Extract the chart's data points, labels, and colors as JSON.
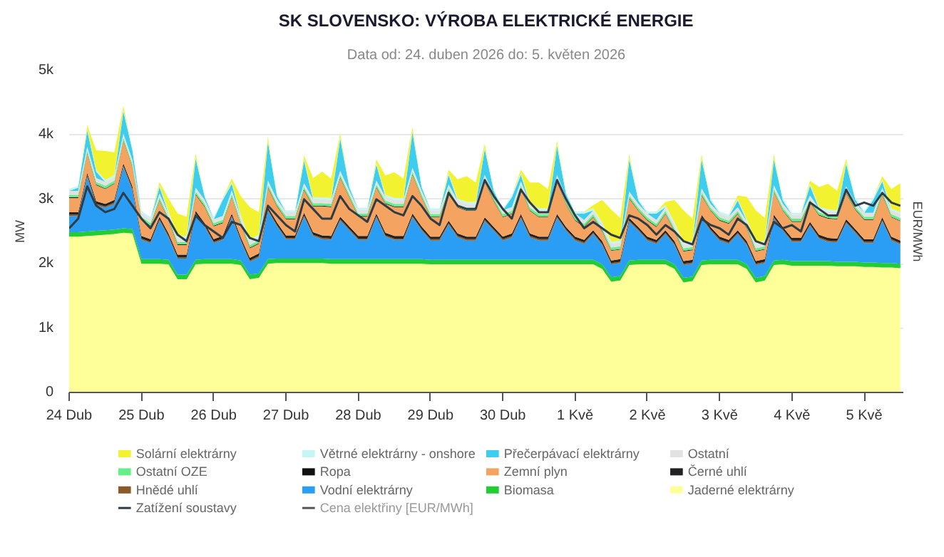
{
  "chart_data": {
    "type": "area",
    "stacked": true,
    "title": "SK SLOVENSKO: VÝROBA ELEKTRICKÉ ENERGIE",
    "subtitle": "Data od: 24. duben 2026 do: 5. květen 2026",
    "ylabel": "MW",
    "y2label": "EUR/MWh",
    "x": [
      "2026-04-24T00:00",
      "2026-04-24T03:00",
      "2026-04-24T06:00",
      "2026-04-24T09:00",
      "2026-04-24T12:00",
      "2026-04-24T15:00",
      "2026-04-24T18:00",
      "2026-04-24T21:00",
      "2026-04-25T00:00",
      "2026-04-25T03:00",
      "2026-04-25T06:00",
      "2026-04-25T09:00",
      "2026-04-25T12:00",
      "2026-04-25T15:00",
      "2026-04-25T18:00",
      "2026-04-25T21:00",
      "2026-04-26T00:00",
      "2026-04-26T03:00",
      "2026-04-26T06:00",
      "2026-04-26T09:00",
      "2026-04-26T12:00",
      "2026-04-26T15:00",
      "2026-04-26T18:00",
      "2026-04-26T21:00",
      "2026-04-27T00:00",
      "2026-04-27T03:00",
      "2026-04-27T06:00",
      "2026-04-27T09:00",
      "2026-04-27T12:00",
      "2026-04-27T15:00",
      "2026-04-27T18:00",
      "2026-04-27T21:00",
      "2026-04-28T00:00",
      "2026-04-28T03:00",
      "2026-04-28T06:00",
      "2026-04-28T09:00",
      "2026-04-28T12:00",
      "2026-04-28T15:00",
      "2026-04-28T18:00",
      "2026-04-28T21:00",
      "2026-04-29T00:00",
      "2026-04-29T03:00",
      "2026-04-29T06:00",
      "2026-04-29T09:00",
      "2026-04-29T12:00",
      "2026-04-29T15:00",
      "2026-04-29T18:00",
      "2026-04-29T21:00",
      "2026-04-30T00:00",
      "2026-04-30T03:00",
      "2026-04-30T06:00",
      "2026-04-30T09:00",
      "2026-04-30T12:00",
      "2026-04-30T15:00",
      "2026-04-30T18:00",
      "2026-04-30T21:00",
      "2026-05-01T00:00",
      "2026-05-01T03:00",
      "2026-05-01T06:00",
      "2026-05-01T09:00",
      "2026-05-01T12:00",
      "2026-05-01T15:00",
      "2026-05-01T18:00",
      "2026-05-01T21:00",
      "2026-05-02T00:00",
      "2026-05-02T03:00",
      "2026-05-02T06:00",
      "2026-05-02T09:00",
      "2026-05-02T12:00",
      "2026-05-02T15:00",
      "2026-05-02T18:00",
      "2026-05-02T21:00",
      "2026-05-03T00:00",
      "2026-05-03T03:00",
      "2026-05-03T06:00",
      "2026-05-03T09:00",
      "2026-05-03T12:00",
      "2026-05-03T15:00",
      "2026-05-03T18:00",
      "2026-05-03T21:00",
      "2026-05-04T00:00",
      "2026-05-04T03:00",
      "2026-05-04T06:00",
      "2026-05-04T09:00",
      "2026-05-04T12:00",
      "2026-05-04T15:00",
      "2026-05-04T18:00",
      "2026-05-04T21:00",
      "2026-05-05T00:00",
      "2026-05-05T03:00",
      "2026-05-05T06:00",
      "2026-05-05T09:00",
      "2026-05-05T12:00"
    ],
    "xlim": [
      "2026-04-24T00:00",
      "2026-05-05T13:00"
    ],
    "xticks": [
      {
        "value": "2026-04-24",
        "label": "24 Dub"
      },
      {
        "value": "2026-04-25",
        "label": "25 Dub"
      },
      {
        "value": "2026-04-26",
        "label": "26 Dub"
      },
      {
        "value": "2026-04-27",
        "label": "27 Dub"
      },
      {
        "value": "2026-04-28",
        "label": "28 Dub"
      },
      {
        "value": "2026-04-29",
        "label": "29 Dub"
      },
      {
        "value": "2026-04-30",
        "label": "30 Dub"
      },
      {
        "value": "2026-05-01",
        "label": "1 Kvě"
      },
      {
        "value": "2026-05-02",
        "label": "2 Kvě"
      },
      {
        "value": "2026-05-03",
        "label": "3 Kvě"
      },
      {
        "value": "2026-05-04",
        "label": "4 Kvě"
      },
      {
        "value": "2026-05-05",
        "label": "5 Kvě"
      }
    ],
    "ylim": [
      0,
      5000
    ],
    "yticks": [
      0,
      {
        "value": 1000,
        "label": "1k"
      },
      {
        "value": 2000,
        "label": "2k"
      },
      {
        "value": 3000,
        "label": "3k"
      },
      {
        "value": 4000,
        "label": "4k"
      },
      {
        "value": 5000,
        "label": "5k"
      }
    ],
    "grid": "y",
    "legend": "bottom",
    "series": [
      {
        "name": "Jaderné elektrárny",
        "color": "#ffff99",
        "values": [
          2420,
          2420,
          2430,
          2440,
          2450,
          2460,
          2480,
          2470,
          2000,
          2000,
          2000,
          1990,
          1760,
          1760,
          1990,
          2000,
          2000,
          2000,
          2000,
          1980,
          1760,
          1780,
          2000,
          2010,
          2010,
          2010,
          2010,
          2010,
          2010,
          2000,
          2000,
          2000,
          2000,
          2000,
          2000,
          2000,
          2000,
          2000,
          2000,
          2000,
          1990,
          1990,
          1990,
          1990,
          1990,
          1990,
          1990,
          1990,
          1990,
          1990,
          1990,
          1990,
          1990,
          1990,
          1990,
          1990,
          1990,
          1990,
          1990,
          1920,
          1720,
          1740,
          1980,
          1990,
          1990,
          1990,
          1990,
          1920,
          1710,
          1730,
          1980,
          1990,
          1990,
          1990,
          1990,
          1920,
          1710,
          1740,
          1980,
          1990,
          1970,
          1970,
          1970,
          1970,
          1970,
          1960,
          1960,
          1960,
          1950,
          1950,
          1940,
          1940,
          1930
        ]
      },
      {
        "name": "Biomasa",
        "color": "#22cc33",
        "values": [
          70,
          70,
          70,
          70,
          70,
          70,
          70,
          70,
          70,
          70,
          70,
          70,
          70,
          70,
          70,
          70,
          70,
          70,
          70,
          70,
          70,
          70,
          70,
          70,
          70,
          70,
          70,
          70,
          70,
          70,
          70,
          70,
          70,
          70,
          70,
          70,
          70,
          70,
          70,
          70,
          70,
          70,
          70,
          70,
          70,
          70,
          70,
          70,
          70,
          70,
          70,
          70,
          70,
          70,
          70,
          70,
          70,
          70,
          70,
          70,
          70,
          70,
          70,
          70,
          70,
          70,
          70,
          70,
          70,
          70,
          70,
          70,
          70,
          70,
          70,
          70,
          70,
          70,
          70,
          70,
          70,
          70,
          70,
          70,
          70,
          70,
          70,
          70,
          70,
          70,
          70,
          70,
          70
        ]
      },
      {
        "name": "Vodní elektrárny",
        "color": "#2a9df4",
        "values": [
          250,
          250,
          850,
          400,
          350,
          400,
          950,
          600,
          300,
          250,
          600,
          350,
          250,
          250,
          700,
          500,
          250,
          300,
          650,
          300,
          200,
          250,
          750,
          500,
          300,
          300,
          650,
          350,
          300,
          300,
          600,
          450,
          300,
          300,
          650,
          350,
          300,
          300,
          650,
          450,
          300,
          300,
          550,
          350,
          300,
          300,
          600,
          450,
          300,
          350,
          650,
          350,
          300,
          300,
          650,
          450,
          300,
          250,
          400,
          300,
          200,
          200,
          600,
          450,
          300,
          250,
          400,
          300,
          200,
          200,
          650,
          450,
          300,
          250,
          400,
          300,
          200,
          200,
          650,
          450,
          300,
          300,
          550,
          350,
          300,
          300,
          600,
          450,
          300,
          300,
          650,
          350,
          300
        ]
      },
      {
        "name": "Hnědé uhlí",
        "color": "#8b5a2b",
        "values": [
          20,
          20,
          20,
          20,
          20,
          20,
          20,
          20,
          20,
          20,
          20,
          20,
          20,
          20,
          20,
          20,
          20,
          20,
          20,
          20,
          20,
          20,
          20,
          20,
          20,
          20,
          20,
          20,
          20,
          20,
          20,
          20,
          20,
          20,
          20,
          20,
          20,
          20,
          20,
          20,
          20,
          20,
          20,
          20,
          20,
          20,
          20,
          20,
          20,
          20,
          20,
          20,
          20,
          20,
          20,
          20,
          20,
          20,
          20,
          20,
          20,
          20,
          20,
          20,
          20,
          20,
          20,
          20,
          20,
          20,
          20,
          20,
          20,
          20,
          20,
          20,
          20,
          20,
          20,
          20,
          20,
          20,
          20,
          20,
          20,
          20,
          20,
          20,
          20,
          20,
          20,
          20,
          20
        ]
      },
      {
        "name": "Černé uhlí",
        "color": "#222222",
        "values": [
          40,
          40,
          40,
          40,
          40,
          40,
          40,
          40,
          40,
          40,
          40,
          40,
          40,
          40,
          40,
          40,
          40,
          40,
          40,
          40,
          40,
          40,
          40,
          40,
          40,
          40,
          40,
          40,
          40,
          40,
          40,
          40,
          40,
          40,
          40,
          40,
          40,
          40,
          40,
          40,
          40,
          40,
          40,
          40,
          40,
          40,
          40,
          40,
          40,
          40,
          40,
          40,
          40,
          40,
          40,
          40,
          40,
          40,
          40,
          40,
          40,
          40,
          40,
          40,
          40,
          40,
          40,
          40,
          40,
          40,
          40,
          40,
          40,
          40,
          40,
          40,
          40,
          40,
          40,
          40,
          40,
          40,
          40,
          40,
          40,
          40,
          40,
          40,
          40,
          40,
          40,
          40,
          40
        ]
      },
      {
        "name": "Zemní plyn",
        "color": "#f4a460",
        "values": [
          220,
          220,
          300,
          250,
          230,
          250,
          350,
          300,
          250,
          200,
          250,
          200,
          150,
          150,
          250,
          250,
          200,
          200,
          250,
          200,
          150,
          150,
          300,
          250,
          250,
          250,
          350,
          400,
          450,
          450,
          600,
          450,
          300,
          300,
          400,
          450,
          450,
          450,
          600,
          450,
          300,
          300,
          450,
          400,
          400,
          400,
          550,
          400,
          300,
          300,
          400,
          350,
          300,
          300,
          500,
          350,
          250,
          200,
          200,
          150,
          150,
          150,
          300,
          250,
          250,
          200,
          250,
          150,
          150,
          150,
          300,
          250,
          250,
          250,
          250,
          200,
          150,
          150,
          350,
          250,
          250,
          250,
          300,
          300,
          300,
          300,
          400,
          300,
          300,
          300,
          350,
          300,
          300
        ]
      },
      {
        "name": "Ropa",
        "color": "#111111",
        "values": [
          10,
          10,
          10,
          10,
          10,
          10,
          10,
          10,
          10,
          10,
          10,
          10,
          10,
          10,
          10,
          10,
          10,
          10,
          10,
          10,
          10,
          10,
          10,
          10,
          10,
          10,
          10,
          10,
          10,
          10,
          10,
          10,
          10,
          10,
          10,
          10,
          10,
          10,
          10,
          10,
          10,
          10,
          10,
          10,
          10,
          10,
          10,
          10,
          10,
          10,
          10,
          10,
          10,
          10,
          10,
          10,
          10,
          10,
          10,
          10,
          10,
          10,
          10,
          10,
          10,
          10,
          10,
          10,
          10,
          10,
          10,
          10,
          10,
          10,
          10,
          10,
          10,
          10,
          10,
          10,
          10,
          10,
          10,
          10,
          10,
          10,
          10,
          10,
          10,
          10,
          10,
          10,
          10
        ]
      },
      {
        "name": "Ostatní OZE",
        "color": "#66ee88",
        "values": [
          40,
          40,
          40,
          40,
          40,
          40,
          40,
          40,
          40,
          40,
          40,
          40,
          40,
          40,
          40,
          40,
          40,
          40,
          40,
          40,
          40,
          40,
          40,
          40,
          40,
          40,
          40,
          40,
          40,
          40,
          40,
          40,
          40,
          40,
          40,
          40,
          40,
          40,
          40,
          40,
          40,
          40,
          40,
          40,
          40,
          40,
          40,
          40,
          40,
          40,
          40,
          40,
          40,
          40,
          40,
          40,
          40,
          40,
          40,
          40,
          40,
          40,
          40,
          40,
          40,
          40,
          40,
          40,
          40,
          40,
          40,
          40,
          40,
          40,
          40,
          40,
          40,
          40,
          40,
          40,
          40,
          40,
          40,
          40,
          40,
          40,
          40,
          40,
          40,
          40,
          40,
          40,
          40
        ]
      },
      {
        "name": "Ostatní",
        "color": "#e2e2e2",
        "values": [
          60,
          60,
          60,
          60,
          60,
          60,
          60,
          60,
          60,
          60,
          60,
          60,
          60,
          60,
          60,
          60,
          60,
          60,
          60,
          60,
          60,
          60,
          60,
          60,
          60,
          60,
          60,
          60,
          60,
          60,
          60,
          60,
          60,
          60,
          60,
          60,
          60,
          60,
          60,
          60,
          60,
          60,
          60,
          60,
          60,
          60,
          60,
          60,
          60,
          60,
          60,
          60,
          60,
          60,
          60,
          60,
          60,
          60,
          60,
          60,
          60,
          60,
          60,
          60,
          60,
          60,
          60,
          60,
          60,
          60,
          60,
          60,
          60,
          60,
          60,
          60,
          60,
          60,
          60,
          60,
          60,
          60,
          60,
          60,
          60,
          60,
          60,
          60,
          60,
          60,
          60,
          60,
          60
        ]
      },
      {
        "name": "Přečerpávací elektrárny",
        "color": "#3fcdef",
        "values": [
          0,
          50,
          250,
          100,
          0,
          0,
          350,
          150,
          0,
          0,
          100,
          0,
          0,
          0,
          450,
          50,
          0,
          250,
          100,
          0,
          0,
          0,
          600,
          50,
          0,
          0,
          350,
          0,
          0,
          0,
          500,
          50,
          0,
          0,
          250,
          0,
          0,
          0,
          550,
          50,
          0,
          0,
          150,
          0,
          0,
          0,
          400,
          50,
          0,
          150,
          100,
          0,
          0,
          0,
          450,
          50,
          0,
          100,
          0,
          0,
          0,
          0,
          500,
          50,
          0,
          100,
          0,
          0,
          0,
          0,
          450,
          50,
          0,
          0,
          100,
          0,
          0,
          0,
          400,
          50,
          0,
          0,
          150,
          0,
          0,
          0,
          350,
          50,
          0,
          200,
          100,
          0,
          0
        ]
      },
      {
        "name": "Větrné elektrárny - onshore",
        "color": "#c4f7f3",
        "values": [
          30,
          30,
          30,
          30,
          30,
          30,
          30,
          30,
          30,
          30,
          30,
          30,
          30,
          30,
          30,
          30,
          30,
          30,
          30,
          30,
          30,
          30,
          30,
          30,
          30,
          30,
          30,
          30,
          30,
          30,
          30,
          30,
          30,
          30,
          30,
          30,
          30,
          30,
          30,
          30,
          30,
          30,
          30,
          30,
          30,
          30,
          30,
          30,
          30,
          30,
          30,
          30,
          30,
          30,
          30,
          30,
          30,
          30,
          30,
          30,
          30,
          30,
          30,
          30,
          30,
          30,
          30,
          30,
          30,
          30,
          30,
          30,
          30,
          30,
          30,
          30,
          30,
          30,
          30,
          30,
          30,
          30,
          30,
          30,
          30,
          30,
          30,
          30,
          30,
          30,
          30,
          30,
          30
        ]
      },
      {
        "name": "Solární elektrárny",
        "color": "#f2f230",
        "values": [
          0,
          0,
          50,
          300,
          450,
          350,
          50,
          0,
          0,
          0,
          50,
          200,
          350,
          300,
          50,
          0,
          0,
          0,
          50,
          300,
          500,
          350,
          50,
          0,
          0,
          0,
          50,
          300,
          400,
          300,
          50,
          0,
          0,
          0,
          50,
          300,
          400,
          300,
          50,
          0,
          0,
          0,
          50,
          300,
          400,
          300,
          50,
          0,
          0,
          0,
          50,
          300,
          400,
          300,
          50,
          0,
          0,
          0,
          50,
          350,
          500,
          350,
          50,
          0,
          0,
          0,
          50,
          350,
          500,
          350,
          50,
          0,
          0,
          0,
          50,
          350,
          500,
          350,
          50,
          0,
          0,
          0,
          50,
          300,
          400,
          300,
          50,
          0,
          0,
          0,
          50,
          300,
          450
        ]
      },
      {
        "name": "Zatížení soustavy",
        "type": "line",
        "color": "#2f3b45",
        "values": [
          2550,
          2700,
          3200,
          2900,
          2800,
          2850,
          3100,
          2900,
          2700,
          2550,
          2800,
          2700,
          2450,
          2350,
          2750,
          2600,
          2500,
          2400,
          2650,
          2600,
          2400,
          2350,
          2900,
          2750,
          2600,
          2500,
          3000,
          2850,
          2700,
          2700,
          3050,
          2850,
          2750,
          2650,
          3000,
          2900,
          2800,
          2750,
          3050,
          2900,
          2700,
          2600,
          3100,
          2900,
          2850,
          2850,
          3300,
          3050,
          2850,
          2700,
          3150,
          2950,
          2800,
          2800,
          3300,
          3000,
          2750,
          2550,
          2650,
          2550,
          2450,
          2400,
          2750,
          2700,
          2600,
          2450,
          2600,
          2500,
          2350,
          2300,
          2700,
          2600,
          2550,
          2450,
          2700,
          2600,
          2350,
          2300,
          2650,
          2550,
          2600,
          2500,
          2950,
          2850,
          2750,
          2750,
          3150,
          2900,
          2950,
          2900,
          3100,
          2950,
          2900
        ]
      },
      {
        "name": "Cena elektřiny [EUR/MWh]",
        "type": "line",
        "axis": "y2",
        "color": "#555555",
        "values": [
          null,
          null,
          null,
          null,
          null,
          null,
          null,
          null,
          null,
          null,
          null,
          null,
          null,
          null,
          null,
          null,
          null,
          null,
          null,
          null,
          null,
          null,
          null,
          null,
          null,
          null,
          null,
          null,
          null,
          null,
          null,
          null,
          null,
          null,
          null,
          null,
          null,
          null,
          null,
          null,
          null,
          null,
          null,
          null,
          null,
          null,
          null,
          null,
          null,
          null,
          null,
          null,
          null,
          null,
          null,
          null,
          null,
          null,
          null,
          null,
          null,
          null,
          null,
          null,
          null,
          null,
          null,
          null,
          null,
          null,
          null,
          null,
          null,
          null,
          null,
          null,
          null,
          null,
          null,
          null,
          null,
          null,
          null,
          null,
          null,
          null,
          null,
          null,
          null,
          null,
          null,
          null,
          null
        ]
      }
    ]
  }
}
